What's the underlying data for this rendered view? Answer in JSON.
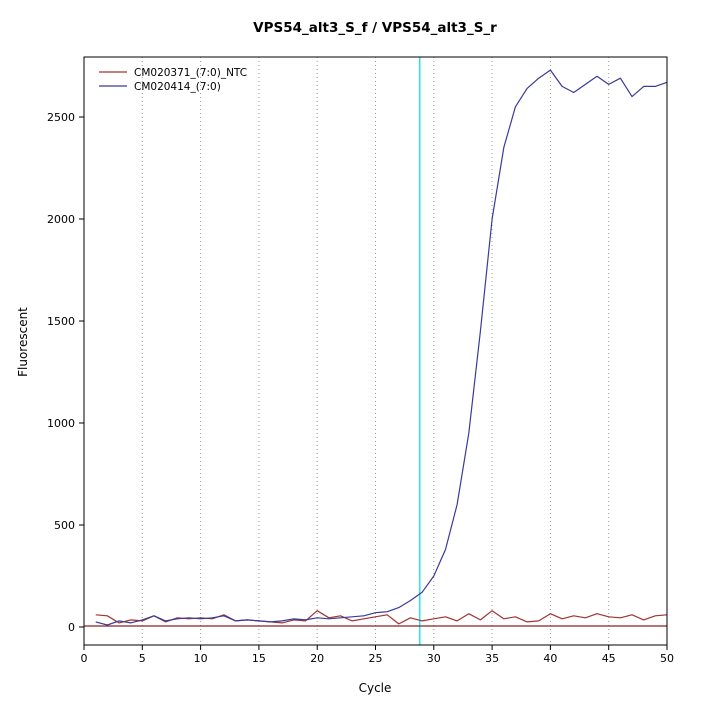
{
  "chart_data": {
    "type": "line",
    "title": "VPS54_alt3_S_f / VPS54_alt3_S_r",
    "xlabel": "Cycle",
    "ylabel": "Fluorescent",
    "xlim": [
      0,
      50
    ],
    "ylim": [
      0,
      2500
    ],
    "x_ticks": [
      0,
      5,
      10,
      15,
      20,
      25,
      30,
      35,
      40,
      45,
      50
    ],
    "y_ticks": [
      0,
      500,
      1000,
      1500,
      2000,
      2500
    ],
    "grid": "vertical-dotted",
    "legend_position": "top-left",
    "x_start_cycle": 1,
    "threshold_cycle_line": {
      "x": 28.8,
      "color": "#00E5E5"
    },
    "baseline_line": {
      "y": 5,
      "color": "#8B2323"
    },
    "series": [
      {
        "name": "CM020371_(7:0)_NTC",
        "color": "#A03333",
        "values": [
          60,
          55,
          20,
          35,
          30,
          55,
          25,
          45,
          40,
          45,
          40,
          60,
          30,
          35,
          30,
          25,
          20,
          35,
          30,
          80,
          45,
          55,
          30,
          40,
          50,
          60,
          15,
          45,
          30,
          40,
          50,
          30,
          65,
          35,
          80,
          40,
          50,
          25,
          30,
          65,
          40,
          55,
          45,
          65,
          50,
          45,
          60,
          35,
          55,
          60
        ]
      },
      {
        "name": "CM020414_(7:0)",
        "color": "#3A3A99",
        "values": [
          25,
          10,
          30,
          20,
          35,
          55,
          30,
          40,
          45,
          40,
          45,
          55,
          30,
          35,
          30,
          25,
          30,
          40,
          35,
          45,
          40,
          45,
          50,
          55,
          70,
          75,
          95,
          130,
          170,
          250,
          380,
          600,
          950,
          1450,
          2000,
          2350,
          2550,
          2640,
          2690,
          2730,
          2650,
          2620,
          2660,
          2700,
          2660,
          2690,
          2600,
          2650,
          2650,
          2670
        ]
      }
    ]
  }
}
